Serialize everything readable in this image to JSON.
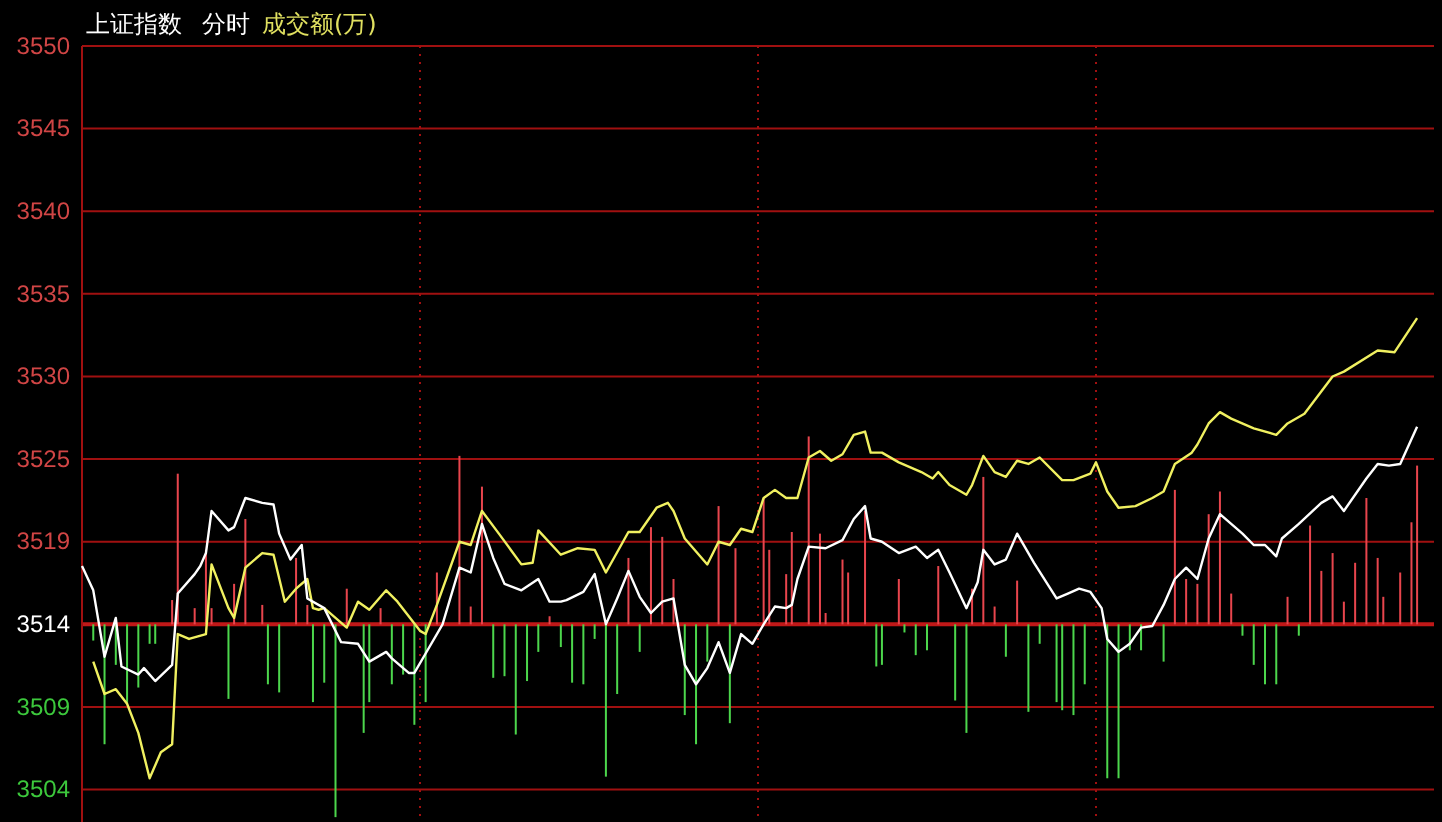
{
  "chart_data": {
    "type": "line",
    "title": "上证指数",
    "subtitle": "分时",
    "annotations": [
      "成交额(万)"
    ],
    "categories": [
      null,
      null,
      null,
      null,
      null,
      null,
      null,
      null,
      null,
      null,
      null,
      null,
      null,
      null,
      null,
      null,
      null,
      null,
      null,
      null,
      null,
      null,
      null,
      null,
      null,
      null,
      null,
      null,
      null,
      null,
      null,
      null,
      null,
      null,
      null,
      null,
      null,
      null,
      null,
      null,
      null,
      null,
      null,
      null,
      null,
      null,
      null,
      null,
      null,
      null,
      null,
      null,
      null,
      null,
      null,
      null,
      null,
      null,
      null,
      null,
      null,
      null,
      null,
      null,
      null,
      null,
      null,
      null,
      null,
      null,
      null,
      null,
      null,
      null,
      null,
      null,
      null,
      null,
      null,
      null,
      null,
      null,
      null,
      null,
      null,
      null,
      null,
      null,
      null,
      null,
      null,
      null,
      null,
      null,
      null,
      null,
      null,
      null,
      null,
      null,
      null,
      null,
      null,
      null,
      null,
      null,
      null,
      null,
      null,
      null,
      null,
      null,
      null,
      null,
      null,
      null,
      null,
      null,
      null,
      null,
      null,
      null,
      null,
      null,
      null,
      null,
      null,
      null,
      null,
      null,
      null,
      null,
      null,
      null,
      null,
      null,
      null,
      null,
      null,
      null,
      null,
      null,
      null,
      null,
      null,
      null,
      null,
      null,
      null,
      null,
      null,
      null,
      null,
      null,
      null,
      null,
      null,
      null,
      null,
      null,
      null,
      null,
      null,
      null,
      null,
      null,
      null,
      null,
      null,
      null,
      null,
      null,
      null,
      null,
      null,
      null,
      null,
      null,
      null,
      null,
      null,
      null,
      null,
      null,
      null,
      null,
      null,
      null,
      null,
      null,
      null,
      null,
      null,
      null,
      null,
      null,
      null,
      null,
      null,
      null,
      null,
      null,
      null,
      null,
      null,
      null,
      null,
      null,
      null,
      null,
      null,
      null,
      null,
      null,
      null,
      null,
      null,
      null,
      null,
      null,
      null,
      null,
      null,
      null,
      null,
      null,
      null,
      null,
      null,
      null,
      null,
      null,
      null,
      null,
      null,
      null,
      null,
      null,
      null,
      null
    ],
    "ylim": [
      3502.1,
      3550.0
    ],
    "yticks": [
      {
        "value": 3504.1,
        "label": "3504"
      },
      {
        "value": 3509.2,
        "label": "3509"
      },
      {
        "value": 3514.3,
        "label": "3514"
      },
      {
        "value": 3519.4,
        "label": "3519"
      },
      {
        "value": 3524.5,
        "label": "3525"
      },
      {
        "value": 3529.6,
        "label": "3530"
      },
      {
        "value": 3534.7,
        "label": "3535"
      },
      {
        "value": 3539.8,
        "label": "3540"
      },
      {
        "value": 3544.9,
        "label": "3545"
      },
      {
        "value": 3550.0,
        "label": "3550"
      }
    ],
    "grid": true,
    "tick_labels": "y",
    "ref_lines": [
      {
        "axis": "y",
        "value": 3514.3,
        "color": "#c01818"
      }
    ],
    "series": [
      {
        "type": "bar",
        "color": "#e8454d",
        "values": [
          null,
          null,
          null,
          null,
          null,
          null,
          null,
          null,
          null,
          null,
          null,
          null,
          null,
          null,
          null,
          null,
          1.5,
          9.3,
          null,
          null,
          1.0,
          null,
          4.6,
          1.0,
          null,
          null,
          null,
          2.5,
          null,
          6.5,
          null,
          null,
          1.2,
          null,
          null,
          null,
          null,
          null,
          4.1,
          null,
          1.2,
          null,
          null,
          null,
          null,
          null,
          null,
          2.2,
          null,
          null,
          null,
          null,
          null,
          1.0,
          null,
          null,
          null,
          null,
          null,
          null,
          null,
          null,
          null,
          3.2,
          null,
          null,
          null,
          10.4,
          null,
          1.1,
          null,
          8.5,
          null,
          null,
          null,
          null,
          null,
          null,
          null,
          null,
          null,
          null,
          null,
          0.5,
          null,
          null,
          null,
          null,
          null,
          null,
          null,
          null,
          null,
          null,
          null,
          null,
          null,
          4.1,
          null,
          null,
          null,
          6.0,
          null,
          5.4,
          null,
          2.8,
          null,
          null,
          null,
          null,
          null,
          null,
          null,
          7.3,
          null,
          null,
          4.7,
          null,
          null,
          null,
          null,
          7.8,
          4.6,
          null,
          null,
          3.1,
          5.7,
          null,
          null,
          11.6,
          null,
          5.6,
          0.7,
          null,
          null,
          4.0,
          3.2,
          null,
          null,
          7.0,
          null,
          null,
          null,
          null,
          null,
          2.8,
          null,
          null,
          null,
          null,
          null,
          null,
          3.6,
          null,
          null,
          null,
          null,
          null,
          2.2,
          null,
          9.1,
          null,
          1.1,
          null,
          null,
          null,
          2.7,
          null,
          null,
          null,
          null,
          null,
          null,
          null,
          null,
          null,
          null,
          null,
          null,
          null,
          null,
          null,
          null,
          null,
          null,
          null,
          null,
          null,
          null,
          null,
          null,
          null,
          null,
          null,
          8.3,
          null,
          2.8,
          null,
          2.5,
          null,
          6.8,
          null,
          8.2,
          null,
          1.9,
          null,
          null,
          null,
          null,
          null,
          null,
          null,
          null,
          null,
          1.7,
          null,
          null,
          null,
          6.1,
          null,
          3.3,
          null,
          4.4,
          null,
          1.4,
          null,
          3.8,
          null,
          7.8,
          null,
          4.1,
          1.7,
          null,
          null,
          3.2,
          null,
          6.3,
          9.8,
          null,
          null
        ],
        "base": [
          null,
          null,
          null,
          null,
          null,
          null,
          null,
          null,
          null,
          null,
          null,
          null,
          null,
          null,
          null,
          null,
          3514.3,
          3514.3,
          null,
          null,
          3514.3,
          null,
          3514.3,
          3514.3,
          null,
          null,
          null,
          3514.3,
          null,
          3514.3,
          null,
          null,
          3514.3,
          null,
          null,
          null,
          null,
          null,
          3514.3,
          null,
          3514.3,
          null,
          null,
          null,
          null,
          null,
          null,
          3514.3,
          null,
          null,
          null,
          null,
          null,
          3514.3,
          null,
          null,
          null,
          null,
          null,
          null,
          null,
          null,
          null,
          3514.3,
          null,
          null,
          null,
          3514.3,
          null,
          3514.3,
          null,
          3514.3,
          null,
          null,
          null,
          null,
          null,
          null,
          null,
          null,
          null,
          null,
          null,
          3514.3,
          null,
          null,
          null,
          null,
          null,
          null,
          null,
          null,
          null,
          null,
          null,
          null,
          null,
          3514.3,
          null,
          null,
          null,
          3514.3,
          null,
          3514.3,
          null,
          3514.3,
          null,
          null,
          null,
          null,
          null,
          null,
          null,
          3514.3,
          null,
          null,
          3514.3,
          null,
          null,
          null,
          null,
          3514.3,
          3514.3,
          null,
          null,
          3514.3,
          3514.3,
          null,
          null,
          3514.3,
          null,
          3514.3,
          3514.3,
          null,
          null,
          3514.3,
          3514.3,
          null,
          null,
          3514.3,
          null,
          null,
          null,
          null,
          null,
          3514.3,
          null,
          null,
          null,
          null,
          null,
          null,
          3514.3,
          null,
          null,
          null,
          null,
          null,
          3514.3,
          null,
          3514.3,
          null,
          3514.3,
          null,
          null,
          null,
          3514.3,
          null,
          null,
          null,
          null,
          null,
          null,
          null,
          null,
          null,
          null,
          null,
          null,
          null,
          null,
          null,
          null,
          null,
          null,
          null,
          null,
          null,
          null,
          null,
          null,
          null,
          null,
          null,
          3514.3,
          null,
          3514.3,
          null,
          3514.3,
          null,
          3514.3,
          null,
          3514.3,
          null,
          3514.3,
          null,
          null,
          null,
          null,
          null,
          null,
          null,
          null,
          null,
          3514.3,
          null,
          null,
          null,
          3514.3,
          null,
          3514.3,
          null,
          3514.3,
          null,
          3514.3,
          null,
          3514.3,
          null,
          3514.3,
          null,
          3514.3,
          3514.3,
          null,
          null,
          3514.3,
          null,
          3514.3,
          3514.3,
          null,
          null
        ]
      },
      {
        "type": "bar",
        "color": "#4cd64c",
        "values": [
          null,
          null,
          -1.0,
          null,
          -7.4,
          null,
          -2.5,
          null,
          -4.9,
          null,
          -3.9,
          null,
          -1.2,
          -1.2,
          null,
          null,
          null,
          null,
          null,
          null,
          null,
          null,
          null,
          null,
          null,
          null,
          -4.6,
          null,
          null,
          null,
          null,
          null,
          null,
          -3.7,
          null,
          -4.2,
          null,
          null,
          null,
          null,
          null,
          -4.8,
          null,
          -3.6,
          null,
          -11.9,
          null,
          null,
          null,
          null,
          -6.7,
          -4.8,
          null,
          null,
          null,
          -3.7,
          null,
          -3.1,
          null,
          -6.2,
          null,
          -4.8,
          null,
          null,
          null,
          null,
          null,
          null,
          null,
          null,
          null,
          null,
          null,
          -3.3,
          null,
          -3.2,
          null,
          -6.8,
          null,
          -3.5,
          null,
          -1.7,
          null,
          null,
          null,
          -1.4,
          null,
          -3.6,
          null,
          -3.7,
          null,
          -0.9,
          null,
          -9.4,
          null,
          -4.3,
          null,
          null,
          null,
          -1.7,
          null,
          null,
          null,
          null,
          null,
          null,
          null,
          -5.6,
          null,
          -7.4,
          null,
          -2.3,
          null,
          null,
          null,
          -6.1,
          null,
          null,
          null,
          null,
          null,
          null,
          null,
          null,
          null,
          null,
          null,
          null,
          null,
          null,
          null,
          null,
          null,
          null,
          null,
          null,
          null,
          null,
          null,
          null,
          null,
          -2.6,
          -2.5,
          null,
          null,
          null,
          -0.5,
          null,
          -1.9,
          null,
          -1.6,
          null,
          null,
          null,
          null,
          -4.7,
          null,
          -6.7,
          null,
          null,
          null,
          null,
          null,
          null,
          -2.0,
          null,
          null,
          null,
          -5.4,
          null,
          -1.2,
          null,
          null,
          -4.8,
          -5.3,
          null,
          -5.6,
          null,
          -3.7,
          null,
          null,
          null,
          -9.5,
          null,
          -9.5,
          null,
          -1.6,
          null,
          -1.6,
          null,
          null,
          null,
          -2.3,
          null,
          null,
          null,
          null,
          null,
          null,
          null,
          null,
          null,
          null,
          null,
          null,
          null,
          -0.7,
          null,
          -2.5,
          null,
          -3.7,
          null,
          -3.7,
          null,
          null,
          null,
          -0.7,
          null,
          null,
          null,
          null,
          null,
          null,
          null,
          null,
          null,
          null,
          null,
          null,
          null,
          null,
          null,
          null,
          null,
          null,
          null,
          null,
          null,
          null,
          null
        ],
        "base": [
          null,
          null,
          3514.3,
          null,
          3514.3,
          null,
          3514.3,
          null,
          3514.3,
          null,
          3514.3,
          null,
          3514.3,
          3514.3,
          null,
          null,
          null,
          null,
          null,
          null,
          null,
          null,
          null,
          null,
          null,
          null,
          3514.3,
          null,
          null,
          null,
          null,
          null,
          null,
          3514.3,
          null,
          3514.3,
          null,
          null,
          null,
          null,
          null,
          3514.3,
          null,
          3514.3,
          null,
          3514.3,
          null,
          null,
          null,
          null,
          3514.3,
          3514.3,
          null,
          null,
          null,
          3514.3,
          null,
          3514.3,
          null,
          3514.3,
          null,
          3514.3,
          null,
          null,
          null,
          null,
          null,
          null,
          null,
          null,
          null,
          null,
          null,
          3514.3,
          null,
          3514.3,
          null,
          3514.3,
          null,
          3514.3,
          null,
          3514.3,
          null,
          null,
          null,
          3514.3,
          null,
          3514.3,
          null,
          3514.3,
          null,
          3514.3,
          null,
          3514.3,
          null,
          3514.3,
          null,
          null,
          null,
          3514.3,
          null,
          null,
          null,
          null,
          null,
          null,
          null,
          3514.3,
          null,
          3514.3,
          null,
          3514.3,
          null,
          null,
          null,
          3514.3,
          null,
          null,
          null,
          null,
          null,
          null,
          null,
          null,
          null,
          null,
          null,
          null,
          null,
          null,
          null,
          null,
          null,
          null,
          null,
          null,
          null,
          null,
          null,
          null,
          null,
          3514.3,
          3514.3,
          null,
          null,
          null,
          3514.3,
          null,
          3514.3,
          null,
          3514.3,
          null,
          null,
          null,
          null,
          3514.3,
          null,
          3514.3,
          null,
          null,
          null,
          null,
          null,
          null,
          3514.3,
          null,
          null,
          null,
          3514.3,
          null,
          3514.3,
          null,
          null,
          3514.3,
          3514.3,
          null,
          3514.3,
          null,
          3514.3,
          null,
          null,
          null,
          3514.3,
          null,
          3514.3,
          null,
          3514.3,
          null,
          3514.3,
          null,
          null,
          null,
          3514.3,
          null,
          null,
          null,
          null,
          null,
          null,
          null,
          null,
          null,
          null,
          null,
          null,
          null,
          3514.3,
          null,
          3514.3,
          null,
          3514.3,
          null,
          3514.3,
          null,
          null,
          null,
          3514.3,
          null,
          null,
          null,
          null,
          null,
          null,
          null,
          null,
          null,
          null,
          null,
          null,
          null,
          null,
          null,
          null,
          null,
          null,
          null,
          null,
          null,
          null,
          null
        ]
      },
      {
        "color": "#f0f060",
        "values": [
          null,
          null,
          3512.0,
          null,
          3510.0,
          null,
          3510.3,
          null,
          3509.4,
          null,
          3507.6,
          null,
          3504.8,
          null,
          3506.4,
          null,
          3506.9,
          3513.7,
          null,
          3513.4,
          null,
          null,
          3513.7,
          3518.0,
          null,
          null,
          3515.3,
          3514.7,
          null,
          3517.8,
          null,
          null,
          3518.7,
          null,
          3518.6,
          null,
          3515.7,
          null,
          3516.5,
          null,
          3517.1,
          3515.3,
          3515.2,
          3515.3,
          null,
          null,
          null,
          3514.1,
          null,
          3515.7,
          null,
          3515.2,
          null,
          null,
          3516.4,
          null,
          3515.7,
          null,
          null,
          null,
          3513.9,
          3513.7,
          null,
          3515.5,
          null,
          null,
          null,
          3519.4,
          null,
          3519.2,
          null,
          3521.3,
          null,
          null,
          3519.9,
          null,
          null,
          null,
          3518.0,
          null,
          3518.1,
          3520.1,
          null,
          null,
          null,
          3518.6,
          null,
          null,
          3519.0,
          null,
          null,
          3518.9,
          null,
          3517.5,
          null,
          null,
          null,
          3520.0,
          null,
          3520.0,
          null,
          null,
          3521.5,
          null,
          3521.8,
          3521.3,
          null,
          3519.6,
          null,
          null,
          null,
          3518.0,
          null,
          3519.4,
          null,
          3519.2,
          null,
          3520.2,
          null,
          3520.0,
          null,
          3522.1,
          null,
          3522.6,
          null,
          3522.1,
          3522.1,
          3522.1,
          null,
          3524.6,
          null,
          3525.0,
          null,
          3524.4,
          null,
          3524.8,
          null,
          3526.0,
          null,
          3526.2,
          3524.9,
          null,
          3524.9,
          null,
          null,
          3524.3,
          null,
          null,
          null,
          3523.7,
          null,
          3523.3,
          3523.7,
          null,
          3522.9,
          null,
          null,
          3522.3,
          3522.9,
          null,
          3524.7,
          null,
          3523.7,
          null,
          3523.4,
          null,
          3524.4,
          null,
          3524.2,
          null,
          3524.6,
          null,
          null,
          null,
          3523.2,
          null,
          3523.2,
          null,
          null,
          3523.6,
          3524.3,
          null,
          3522.5,
          null,
          3521.5,
          null,
          null,
          3521.6,
          null,
          null,
          3522.1,
          null,
          3522.5,
          null,
          3524.2,
          null,
          null,
          3524.9,
          3525.4,
          null,
          3526.7,
          null,
          3527.4,
          null,
          3527.0,
          null,
          null,
          null,
          3526.4,
          null,
          null,
          null,
          3526.0,
          null,
          3526.7,
          null,
          null,
          3527.3,
          null,
          null,
          null,
          null,
          3529.6,
          null,
          3529.9,
          null,
          null,
          null,
          null,
          null,
          3531.2,
          null,
          null,
          3531.1,
          null,
          null,
          null,
          3533.2,
          null,
          null
        ]
      },
      {
        "color": "#ffffff",
        "values": [
          3517.9,
          null,
          3516.4,
          null,
          3512.3,
          null,
          3514.7,
          3511.7,
          null,
          null,
          3511.2,
          3511.6,
          null,
          3510.8,
          null,
          null,
          3511.8,
          3516.2,
          null,
          null,
          3517.4,
          3517.9,
          3518.7,
          3521.3,
          null,
          null,
          3520.1,
          3520.3,
          null,
          3522.1,
          null,
          null,
          3521.8,
          null,
          3521.7,
          3519.9,
          null,
          3518.3,
          null,
          3519.2,
          3515.9,
          null,
          null,
          3515.3,
          null,
          null,
          3513.2,
          null,
          null,
          3513.1,
          null,
          3512.0,
          null,
          null,
          3512.6,
          3512.2,
          null,
          null,
          3511.3,
          3511.3,
          null,
          3512.5,
          null,
          null,
          3514.3,
          null,
          null,
          3517.8,
          null,
          3517.5,
          null,
          3520.5,
          null,
          3518.4,
          null,
          3516.8,
          null,
          null,
          3516.4,
          null,
          null,
          3517.1,
          null,
          3515.7,
          null,
          3515.7,
          3515.8,
          null,
          null,
          3516.3,
          null,
          3517.4,
          null,
          3514.3,
          null,
          3515.9,
          null,
          3517.6,
          null,
          3516.0,
          null,
          3515.0,
          null,
          3515.7,
          null,
          3515.9,
          null,
          3511.8,
          null,
          3510.6,
          null,
          3511.6,
          null,
          3513.2,
          null,
          3511.3,
          null,
          3513.7,
          null,
          3513.1,
          null,
          3514.3,
          null,
          3515.4,
          null,
          3515.3,
          3515.5,
          3517.1,
          null,
          3519.1,
          null,
          null,
          3519.0,
          null,
          null,
          3519.5,
          null,
          3520.8,
          null,
          3521.6,
          3519.6,
          null,
          3519.4,
          null,
          null,
          3518.7,
          null,
          null,
          3519.1,
          null,
          3518.4,
          null,
          3518.9,
          null,
          3517.5,
          null,
          null,
          3515.3,
          null,
          3516.9,
          3518.9,
          null,
          3518.0,
          null,
          3518.3,
          null,
          3519.9,
          null,
          null,
          3518.1,
          null,
          null,
          null,
          3515.9,
          null,
          3516.2,
          null,
          3516.5,
          null,
          3516.3,
          null,
          3515.3,
          3513.4,
          null,
          3512.6,
          null,
          3513.1,
          null,
          3514.1,
          null,
          3514.2,
          null,
          3515.5,
          null,
          3517.1,
          null,
          3517.8,
          null,
          3517.1,
          null,
          3519.6,
          null,
          3521.1,
          null,
          3520.5,
          null,
          3519.9,
          null,
          3519.2,
          null,
          3519.2,
          null,
          3518.5,
          3519.6,
          null,
          null,
          3520.5,
          null,
          null,
          null,
          3521.8,
          null,
          3522.2,
          null,
          3521.3,
          null,
          null,
          null,
          3523.3,
          null,
          3524.2,
          null,
          3524.1,
          null,
          3524.2,
          null,
          null,
          3526.5,
          null,
          null
        ]
      }
    ]
  }
}
